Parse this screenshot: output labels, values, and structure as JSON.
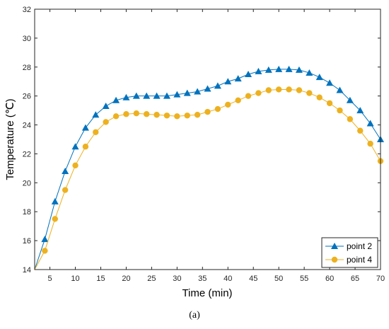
{
  "caption": "(a)",
  "chart_data": {
    "type": "line",
    "title": "",
    "xlabel": "Time (min)",
    "ylabel": "Temperature (℃)",
    "xlim": [
      2,
      70
    ],
    "ylim": [
      14,
      32
    ],
    "xticks": [
      5,
      10,
      15,
      20,
      25,
      30,
      35,
      40,
      45,
      50,
      55,
      60,
      65,
      70
    ],
    "yticks": [
      14,
      16,
      18,
      20,
      22,
      24,
      26,
      28,
      30,
      32
    ],
    "grid": false,
    "legend_position": "bottom-right",
    "x": [
      4,
      6,
      8,
      10,
      12,
      14,
      16,
      18,
      20,
      22,
      24,
      26,
      28,
      30,
      32,
      34,
      36,
      38,
      40,
      42,
      44,
      46,
      48,
      50,
      52,
      54,
      56,
      58,
      60,
      62,
      64,
      66,
      68,
      70
    ],
    "series": [
      {
        "name": "point 2",
        "color": "#0072bd",
        "marker": "triangle",
        "start": [
          2,
          14
        ],
        "values": [
          16.1,
          18.7,
          20.8,
          22.5,
          23.8,
          24.7,
          25.3,
          25.7,
          25.9,
          26.0,
          26.0,
          26.0,
          26.0,
          26.1,
          26.2,
          26.3,
          26.5,
          26.7,
          27.0,
          27.2,
          27.5,
          27.7,
          27.8,
          27.85,
          27.85,
          27.8,
          27.6,
          27.3,
          26.9,
          26.4,
          25.7,
          25.0,
          24.1,
          23.0
        ]
      },
      {
        "name": "point 4",
        "color": "#edb120",
        "marker": "circle",
        "start": [
          2,
          14
        ],
        "values": [
          15.3,
          17.5,
          19.5,
          21.2,
          22.5,
          23.5,
          24.2,
          24.6,
          24.75,
          24.8,
          24.75,
          24.7,
          24.65,
          24.6,
          24.65,
          24.7,
          24.9,
          25.1,
          25.4,
          25.7,
          26.0,
          26.2,
          26.4,
          26.45,
          26.45,
          26.4,
          26.2,
          25.9,
          25.5,
          25.0,
          24.4,
          23.6,
          22.7,
          21.5
        ]
      }
    ]
  }
}
